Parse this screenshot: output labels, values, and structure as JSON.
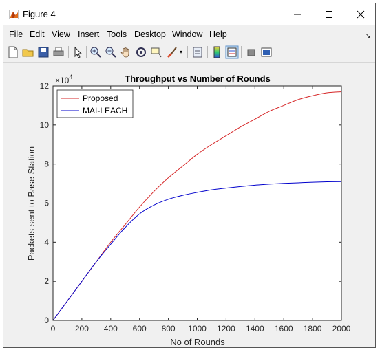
{
  "window": {
    "title": "Figure 4",
    "minimize_icon": "minimize-icon",
    "maximize_icon": "maximize-icon",
    "close_icon": "close-icon"
  },
  "menu": [
    "File",
    "Edit",
    "View",
    "Insert",
    "Tools",
    "Desktop",
    "Window",
    "Help"
  ],
  "toolbar_icons": [
    "new-figure-icon",
    "open-file-icon",
    "save-icon",
    "print-icon",
    "pointer-icon",
    "zoom-in-icon",
    "zoom-out-icon",
    "pan-icon",
    "rotate-3d-icon",
    "data-cursor-icon",
    "brush-icon",
    "link-plot-icon",
    "colorbar-icon",
    "legend-icon",
    "hide-plot-tools-icon",
    "show-plot-tools-icon"
  ],
  "chart_data": {
    "type": "line",
    "title": "Throughput vs Number of Rounds",
    "xlabel": "No of Rounds",
    "ylabel": "Packets sent to Base Station",
    "y_exponent_label": "×10",
    "y_exponent_power": "4",
    "xlim": [
      0,
      2000
    ],
    "ylim": [
      0,
      12
    ],
    "xticks": [
      "0",
      "200",
      "400",
      "600",
      "800",
      "1000",
      "1200",
      "1400",
      "1600",
      "1800",
      "2000"
    ],
    "yticks": [
      "0",
      "2",
      "4",
      "6",
      "8",
      "10",
      "12"
    ],
    "legend_position": "top-left",
    "series": [
      {
        "name": "Proposed",
        "color": "#d62728",
        "x": [
          0,
          100,
          200,
          300,
          400,
          500,
          600,
          700,
          800,
          900,
          1000,
          1100,
          1200,
          1300,
          1400,
          1500,
          1600,
          1700,
          1800,
          1900,
          2000
        ],
        "y": [
          0,
          1.0,
          2.0,
          3.0,
          4.0,
          4.9,
          5.8,
          6.6,
          7.3,
          7.9,
          8.5,
          9.0,
          9.45,
          9.9,
          10.3,
          10.7,
          11.0,
          11.3,
          11.5,
          11.65,
          11.7
        ]
      },
      {
        "name": "MAI-LEACH",
        "color": "#0000cc",
        "x": [
          0,
          100,
          200,
          300,
          400,
          500,
          600,
          700,
          800,
          900,
          1000,
          1100,
          1200,
          1300,
          1400,
          1500,
          1600,
          1700,
          1800,
          1900,
          2000
        ],
        "y": [
          0,
          1.0,
          2.0,
          3.0,
          3.9,
          4.75,
          5.45,
          5.9,
          6.2,
          6.4,
          6.55,
          6.68,
          6.77,
          6.85,
          6.92,
          6.97,
          7.01,
          7.04,
          7.07,
          7.09,
          7.1
        ]
      }
    ]
  }
}
